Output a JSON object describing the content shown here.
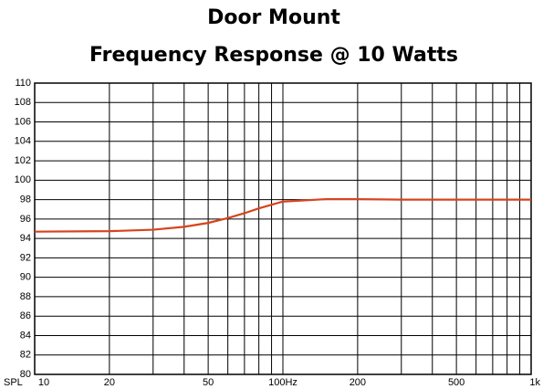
{
  "chart_data": {
    "type": "line",
    "title": "Door Mount",
    "subtitle": "Frequency Response @ 10 Watts",
    "ylabel": "SPL",
    "x": [
      10,
      20,
      30,
      40,
      50,
      60,
      70,
      80,
      100,
      150,
      200,
      300,
      500,
      1000
    ],
    "series": [
      {
        "name": "Door Mount",
        "color": "#d8431c",
        "values": [
          94.7,
          94.75,
          94.9,
          95.2,
          95.6,
          96.1,
          96.6,
          97.1,
          97.8,
          98.05,
          98.05,
          98.0,
          98.0,
          98.0
        ]
      }
    ],
    "xscale": "log",
    "xlim": [
      10,
      1000
    ],
    "xticks": [
      10,
      20,
      50,
      {
        "value": 100,
        "label": "100Hz"
      },
      200,
      500,
      {
        "value": 1000,
        "label": "1k"
      }
    ],
    "x_minor_ticks": [
      30,
      40,
      60,
      70,
      80,
      90,
      300,
      400,
      600,
      700,
      800,
      900
    ],
    "ylim": [
      80,
      110
    ],
    "yticks": [
      80,
      82,
      84,
      86,
      88,
      90,
      92,
      94,
      96,
      98,
      100,
      102,
      104,
      106,
      108,
      110
    ],
    "grid": true
  }
}
